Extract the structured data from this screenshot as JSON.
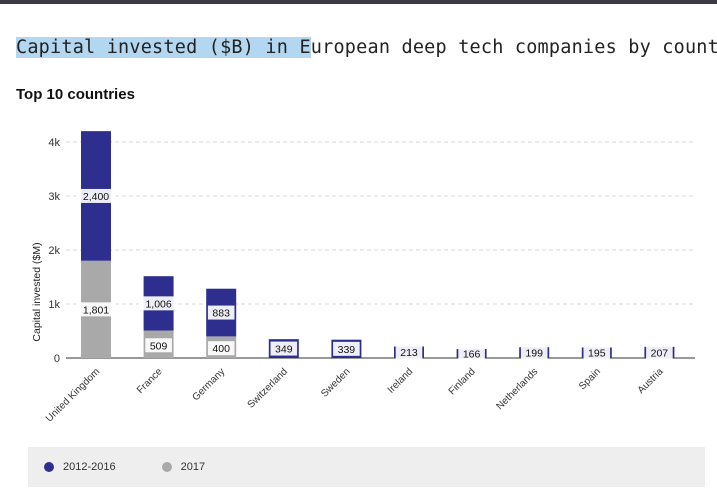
{
  "title": {
    "highlighted": "Capital invested ($B) in E",
    "rest": "uropean deep tech companies by country"
  },
  "subtitle": "Top 10 countries",
  "colors": {
    "series_2012_2016": "#2e2e8f",
    "series_2017": "#a9a9a9",
    "bar_label_bg": "#ffffff",
    "grid": "#d9d9d9",
    "axis": "#333333"
  },
  "chart_data": {
    "type": "bar",
    "stacked": true,
    "categories": [
      "United Kingdom",
      "France",
      "Germany",
      "Switzerland",
      "Sweden",
      "Ireland",
      "Finland",
      "Netherlands",
      "Spain",
      "Austria"
    ],
    "series": [
      {
        "name": "2017",
        "values": [
          1801,
          509,
          400,
          null,
          null,
          null,
          null,
          null,
          null,
          null
        ]
      },
      {
        "name": "2012-2016",
        "values": [
          2400,
          1006,
          883,
          349,
          339,
          213,
          166,
          199,
          195,
          207
        ]
      }
    ],
    "ylabel": "Capital invested ($M)",
    "xlabel": "",
    "ylim": [
      0,
      4000
    ],
    "yticks": [
      0,
      1000,
      2000,
      3000,
      4000
    ],
    "ytick_labels": [
      "0",
      "1k",
      "2k",
      "3k",
      "4k"
    ],
    "data_labels": [
      {
        "category": "United Kingdom",
        "series": "2012-2016",
        "text": "2,400"
      },
      {
        "category": "United Kingdom",
        "series": "2017",
        "text": "1,801"
      },
      {
        "category": "France",
        "series": "2012-2016",
        "text": "1,006"
      },
      {
        "category": "France",
        "series": "2017",
        "text": "509"
      },
      {
        "category": "Germany",
        "series": "2012-2016",
        "text": "883"
      },
      {
        "category": "Germany",
        "series": "2017",
        "text": "400"
      },
      {
        "category": "Switzerland",
        "series": "2012-2016",
        "text": "349"
      },
      {
        "category": "Sweden",
        "series": "2012-2016",
        "text": "339"
      },
      {
        "category": "Ireland",
        "series": "2012-2016",
        "text": "213"
      },
      {
        "category": "Finland",
        "series": "2012-2016",
        "text": "166"
      },
      {
        "category": "Netherlands",
        "series": "2012-2016",
        "text": "199"
      },
      {
        "category": "Spain",
        "series": "2012-2016",
        "text": "195"
      },
      {
        "category": "Austria",
        "series": "2012-2016",
        "text": "207"
      }
    ],
    "grid": true,
    "legend_position": "bottom-left"
  },
  "legend": [
    {
      "label": "2012-2016",
      "color": "#2e2e8f"
    },
    {
      "label": "2017",
      "color": "#a9a9a9"
    }
  ]
}
